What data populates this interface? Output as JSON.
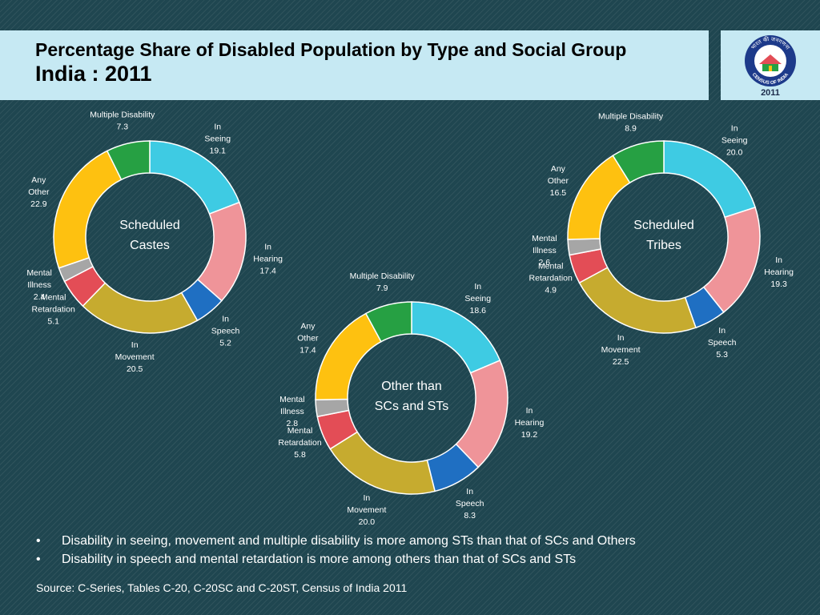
{
  "title": {
    "line1": "Percentage Share of Disabled Population by Type and Social Group",
    "line2": "India : 2011"
  },
  "logo": {
    "text_top": "भारत की जनगणना",
    "text_bottom": "CENSUS OF INDIA",
    "year": "2011"
  },
  "chart_data": [
    {
      "type": "pie",
      "title": "Scheduled Castes",
      "center_lines": [
        "Scheduled",
        "Castes"
      ],
      "categories": [
        "In Seeing",
        "In Hearing",
        "In Speech",
        "In Movement",
        "Mental Retardation",
        "Mental Illness",
        "Any Other",
        "Multiple Disability"
      ],
      "values": [
        19.1,
        17.4,
        5.2,
        20.5,
        5.1,
        2.4,
        22.9,
        7.3
      ]
    },
    {
      "type": "pie",
      "title": "Scheduled Tribes",
      "center_lines": [
        "Scheduled",
        "Tribes"
      ],
      "categories": [
        "In Seeing",
        "In Hearing",
        "In Speech",
        "In Movement",
        "Mental Retardation",
        "Mental Illness",
        "Any Other",
        "Multiple Disability"
      ],
      "values": [
        20.0,
        19.3,
        5.3,
        22.5,
        4.9,
        2.6,
        16.5,
        8.9
      ]
    },
    {
      "type": "pie",
      "title": "Other than SCs and STs",
      "center_lines": [
        "Other than",
        "SCs and STs"
      ],
      "categories": [
        "In Seeing",
        "In Hearing",
        "In Speech",
        "In Movement",
        "Mental Retardation",
        "Mental Illness",
        "Any Other",
        "Multiple Disability"
      ],
      "values": [
        18.6,
        19.2,
        8.3,
        20.0,
        5.8,
        2.8,
        17.4,
        7.9
      ]
    }
  ],
  "series_colors": [
    "#3ecbe3",
    "#ef9499",
    "#1f6fc2",
    "#c6ab2f",
    "#e34d56",
    "#a6a6a6",
    "#fec110",
    "#26a043"
  ],
  "bullets": [
    "Disability in seeing, movement and multiple disability is more among STs than that of SCs and Others",
    "Disability in speech and mental retardation is more among others than that of SCs and STs"
  ],
  "bullet_symbol": "•",
  "source": "Source: C-Series, Tables C-20, C-20SC and C-20ST, Census of India 2011"
}
